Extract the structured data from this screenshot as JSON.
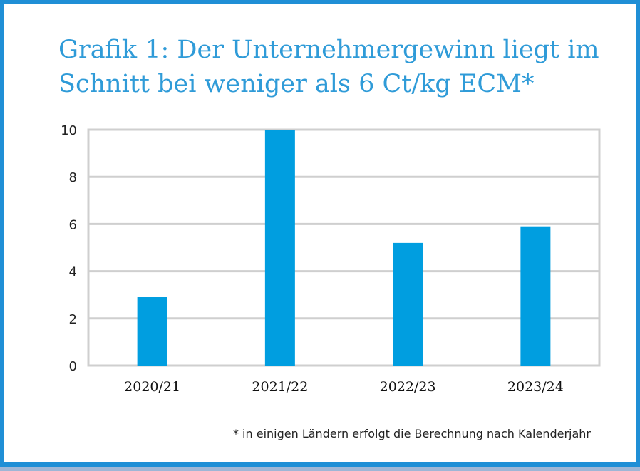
{
  "colors": {
    "accent": "#2f9bd8",
    "bar": "#009ee0",
    "grid": "#cfcfcf"
  },
  "title": "Grafik 1: Der Unternehmergewinn liegt im Schnitt bei weniger als 6 Ct/kg ECM*",
  "footnote": "* in einigen Ländern erfolgt die Berechnung nach Kalenderjahr",
  "chart_data": {
    "type": "bar",
    "categories": [
      "2020/21",
      "2021/22",
      "2022/23",
      "2023/24"
    ],
    "values": [
      2.9,
      10.0,
      5.2,
      5.9
    ],
    "ylim": [
      0,
      10
    ],
    "yticks": [
      0,
      2,
      4,
      6,
      8,
      10
    ],
    "grid": true,
    "xlabel": "",
    "ylabel": ""
  }
}
